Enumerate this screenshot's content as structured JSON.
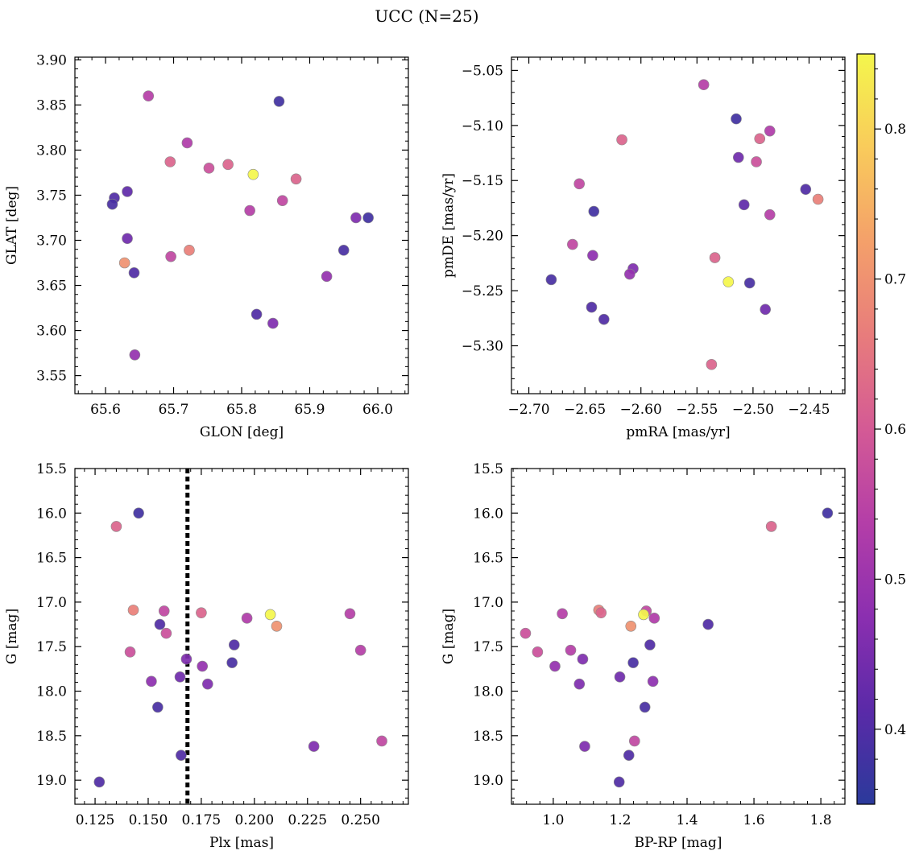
{
  "figure": {
    "title": "UCC (N=25)"
  },
  "colorbar": {
    "range": [
      0.35,
      0.85
    ],
    "ticks": [
      0.4,
      0.5,
      0.6,
      0.7,
      0.8
    ],
    "tick_labels": [
      "0.4",
      "0.5",
      "0.6",
      "0.7",
      "0.8"
    ],
    "colormap": "plasma",
    "stops": [
      "#2b3a9b",
      "#5a2aa8",
      "#8b2fb0",
      "#b43ea8",
      "#d45a95",
      "#e87c7c",
      "#f4a06a",
      "#f9cb5b",
      "#f4f64c"
    ]
  },
  "chart_data": [
    {
      "id": "glon-glat",
      "type": "scatter",
      "xlabel": "GLON [deg]",
      "ylabel": "GLAT [deg]",
      "xlim": [
        65.555,
        66.045
      ],
      "ylim": [
        3.53,
        3.903
      ],
      "y_inverted": false,
      "xticks": [
        65.6,
        65.7,
        65.8,
        65.9,
        66.0
      ],
      "xtick_labels": [
        "65.6",
        "65.7",
        "65.8",
        "65.9",
        "66.0"
      ],
      "yticks": [
        3.55,
        3.6,
        3.65,
        3.7,
        3.75,
        3.8,
        3.85,
        3.9
      ],
      "ytick_labels": [
        "3.55",
        "3.60",
        "3.65",
        "3.70",
        "3.75",
        "3.80",
        "3.85",
        "3.90"
      ],
      "points": [
        {
          "x": 65.663,
          "y": 3.86,
          "c": 0.54
        },
        {
          "x": 65.855,
          "y": 3.854,
          "c": 0.38
        },
        {
          "x": 65.72,
          "y": 3.808,
          "c": 0.53
        },
        {
          "x": 65.695,
          "y": 3.787,
          "c": 0.62
        },
        {
          "x": 65.752,
          "y": 3.78,
          "c": 0.58
        },
        {
          "x": 65.78,
          "y": 3.784,
          "c": 0.62
        },
        {
          "x": 65.817,
          "y": 3.773,
          "c": 0.85
        },
        {
          "x": 65.88,
          "y": 3.768,
          "c": 0.62
        },
        {
          "x": 65.613,
          "y": 3.747,
          "c": 0.4
        },
        {
          "x": 65.61,
          "y": 3.74,
          "c": 0.39
        },
        {
          "x": 65.632,
          "y": 3.754,
          "c": 0.42
        },
        {
          "x": 65.86,
          "y": 3.744,
          "c": 0.56
        },
        {
          "x": 65.812,
          "y": 3.733,
          "c": 0.54
        },
        {
          "x": 65.968,
          "y": 3.725,
          "c": 0.46
        },
        {
          "x": 65.986,
          "y": 3.725,
          "c": 0.38
        },
        {
          "x": 65.632,
          "y": 3.702,
          "c": 0.44
        },
        {
          "x": 65.723,
          "y": 3.689,
          "c": 0.67
        },
        {
          "x": 65.696,
          "y": 3.682,
          "c": 0.56
        },
        {
          "x": 65.95,
          "y": 3.689,
          "c": 0.39
        },
        {
          "x": 65.628,
          "y": 3.675,
          "c": 0.7
        },
        {
          "x": 65.642,
          "y": 3.664,
          "c": 0.4
        },
        {
          "x": 65.925,
          "y": 3.66,
          "c": 0.49
        },
        {
          "x": 65.822,
          "y": 3.618,
          "c": 0.4
        },
        {
          "x": 65.846,
          "y": 3.608,
          "c": 0.46
        },
        {
          "x": 65.643,
          "y": 3.573,
          "c": 0.49
        }
      ]
    },
    {
      "id": "pm",
      "type": "scatter",
      "xlabel": "pmRA [mas/yr]",
      "ylabel": "pmDE [mas/yr]",
      "xlim": [
        -2.7155,
        -2.418
      ],
      "ylim": [
        -5.3435,
        -5.038
      ],
      "y_inverted": false,
      "xticks": [
        -2.7,
        -2.65,
        -2.6,
        -2.55,
        -2.5,
        -2.45
      ],
      "xtick_labels": [
        "−2.70",
        "−2.65",
        "−2.60",
        "−2.55",
        "−2.50",
        "−2.45"
      ],
      "yticks": [
        -5.3,
        -5.25,
        -5.2,
        -5.15,
        -5.1,
        -5.05
      ],
      "ytick_labels": [
        "−5.30",
        "−5.25",
        "−5.20",
        "−5.15",
        "−5.10",
        "−5.05"
      ],
      "points": [
        {
          "x": -2.544,
          "y": -5.063,
          "c": 0.54
        },
        {
          "x": -2.515,
          "y": -5.094,
          "c": 0.38
        },
        {
          "x": -2.485,
          "y": -5.105,
          "c": 0.53
        },
        {
          "x": -2.617,
          "y": -5.113,
          "c": 0.62
        },
        {
          "x": -2.497,
          "y": -5.133,
          "c": 0.58
        },
        {
          "x": -2.494,
          "y": -5.112,
          "c": 0.62
        },
        {
          "x": -2.522,
          "y": -5.242,
          "c": 0.85
        },
        {
          "x": -2.534,
          "y": -5.22,
          "c": 0.62
        },
        {
          "x": -2.453,
          "y": -5.158,
          "c": 0.4
        },
        {
          "x": -2.68,
          "y": -5.24,
          "c": 0.39
        },
        {
          "x": -2.508,
          "y": -5.172,
          "c": 0.42
        },
        {
          "x": -2.655,
          "y": -5.153,
          "c": 0.56
        },
        {
          "x": -2.485,
          "y": -5.181,
          "c": 0.54
        },
        {
          "x": -2.607,
          "y": -5.23,
          "c": 0.46
        },
        {
          "x": -2.642,
          "y": -5.178,
          "c": 0.38
        },
        {
          "x": -2.513,
          "y": -5.129,
          "c": 0.44
        },
        {
          "x": -2.442,
          "y": -5.167,
          "c": 0.67
        },
        {
          "x": -2.661,
          "y": -5.208,
          "c": 0.56
        },
        {
          "x": -2.503,
          "y": -5.243,
          "c": 0.39
        },
        {
          "x": -2.537,
          "y": -5.317,
          "c": 0.62
        },
        {
          "x": -2.643,
          "y": -5.218,
          "c": 0.48
        },
        {
          "x": -2.61,
          "y": -5.235,
          "c": 0.49
        },
        {
          "x": -2.644,
          "y": -5.265,
          "c": 0.4
        },
        {
          "x": -2.633,
          "y": -5.276,
          "c": 0.4
        },
        {
          "x": -2.489,
          "y": -5.267,
          "c": 0.44
        }
      ]
    },
    {
      "id": "plx-g",
      "type": "scatter",
      "xlabel": "Plx [mas]",
      "ylabel": "G [mag]",
      "xlim": [
        0.1155,
        0.2725
      ],
      "ylim": [
        15.5,
        19.27
      ],
      "y_inverted": true,
      "vline": {
        "x": 0.1685,
        "style": "dotted"
      },
      "xticks": [
        0.125,
        0.15,
        0.175,
        0.2,
        0.225,
        0.25
      ],
      "xtick_labels": [
        "0.125",
        "0.150",
        "0.175",
        "0.200",
        "0.225",
        "0.250"
      ],
      "yticks": [
        15.5,
        16.0,
        16.5,
        17.0,
        17.5,
        18.0,
        18.5,
        19.0
      ],
      "ytick_labels": [
        "15.5",
        "16.0",
        "16.5",
        "17.0",
        "17.5",
        "18.0",
        "18.5",
        "19.0"
      ],
      "points": [
        {
          "x": 0.1455,
          "y": 16.0,
          "c": 0.38
        },
        {
          "x": 0.135,
          "y": 16.15,
          "c": 0.62
        },
        {
          "x": 0.143,
          "y": 17.09,
          "c": 0.67
        },
        {
          "x": 0.1575,
          "y": 17.1,
          "c": 0.56
        },
        {
          "x": 0.175,
          "y": 17.12,
          "c": 0.62
        },
        {
          "x": 0.2075,
          "y": 17.14,
          "c": 0.85
        },
        {
          "x": 0.1965,
          "y": 17.18,
          "c": 0.53
        },
        {
          "x": 0.245,
          "y": 17.13,
          "c": 0.54
        },
        {
          "x": 0.2105,
          "y": 17.27,
          "c": 0.7
        },
        {
          "x": 0.1555,
          "y": 17.25,
          "c": 0.4
        },
        {
          "x": 0.1585,
          "y": 17.35,
          "c": 0.58
        },
        {
          "x": 0.1905,
          "y": 17.48,
          "c": 0.4
        },
        {
          "x": 0.1415,
          "y": 17.56,
          "c": 0.58
        },
        {
          "x": 0.25,
          "y": 17.54,
          "c": 0.54
        },
        {
          "x": 0.168,
          "y": 17.64,
          "c": 0.46
        },
        {
          "x": 0.1895,
          "y": 17.68,
          "c": 0.39
        },
        {
          "x": 0.1755,
          "y": 17.72,
          "c": 0.49
        },
        {
          "x": 0.165,
          "y": 17.84,
          "c": 0.44
        },
        {
          "x": 0.1515,
          "y": 17.89,
          "c": 0.48
        },
        {
          "x": 0.178,
          "y": 17.92,
          "c": 0.46
        },
        {
          "x": 0.1545,
          "y": 18.18,
          "c": 0.39
        },
        {
          "x": 0.26,
          "y": 18.56,
          "c": 0.56
        },
        {
          "x": 0.228,
          "y": 18.62,
          "c": 0.46
        },
        {
          "x": 0.1655,
          "y": 18.72,
          "c": 0.4
        },
        {
          "x": 0.127,
          "y": 19.02,
          "c": 0.4
        }
      ]
    },
    {
      "id": "cmd",
      "type": "scatter",
      "xlabel": "BP-RP [mag]",
      "ylabel": "G [mag]",
      "xlim": [
        0.875,
        1.872
      ],
      "ylim": [
        15.5,
        19.27
      ],
      "y_inverted": true,
      "xticks": [
        1.0,
        1.2,
        1.4,
        1.6,
        1.8
      ],
      "xtick_labels": [
        "1.0",
        "1.2",
        "1.4",
        "1.6",
        "1.8"
      ],
      "yticks": [
        15.5,
        16.0,
        16.5,
        17.0,
        17.5,
        18.0,
        18.5,
        19.0
      ],
      "ytick_labels": [
        "15.5",
        "16.0",
        "16.5",
        "17.0",
        "17.5",
        "18.0",
        "18.5",
        "19.0"
      ],
      "points": [
        {
          "x": 1.82,
          "y": 16.0,
          "c": 0.38
        },
        {
          "x": 1.652,
          "y": 16.15,
          "c": 0.62
        },
        {
          "x": 1.136,
          "y": 17.09,
          "c": 0.67
        },
        {
          "x": 1.278,
          "y": 17.1,
          "c": 0.56
        },
        {
          "x": 1.143,
          "y": 17.12,
          "c": 0.62
        },
        {
          "x": 1.27,
          "y": 17.14,
          "c": 0.85
        },
        {
          "x": 1.302,
          "y": 17.18,
          "c": 0.53
        },
        {
          "x": 1.027,
          "y": 17.13,
          "c": 0.54
        },
        {
          "x": 1.232,
          "y": 17.27,
          "c": 0.7
        },
        {
          "x": 1.463,
          "y": 17.25,
          "c": 0.4
        },
        {
          "x": 0.917,
          "y": 17.35,
          "c": 0.58
        },
        {
          "x": 1.289,
          "y": 17.48,
          "c": 0.4
        },
        {
          "x": 0.953,
          "y": 17.56,
          "c": 0.58
        },
        {
          "x": 1.052,
          "y": 17.54,
          "c": 0.54
        },
        {
          "x": 1.088,
          "y": 17.64,
          "c": 0.46
        },
        {
          "x": 1.239,
          "y": 17.68,
          "c": 0.39
        },
        {
          "x": 1.005,
          "y": 17.72,
          "c": 0.49
        },
        {
          "x": 1.199,
          "y": 17.84,
          "c": 0.44
        },
        {
          "x": 1.298,
          "y": 17.89,
          "c": 0.48
        },
        {
          "x": 1.078,
          "y": 17.92,
          "c": 0.46
        },
        {
          "x": 1.274,
          "y": 18.18,
          "c": 0.39
        },
        {
          "x": 1.243,
          "y": 18.56,
          "c": 0.56
        },
        {
          "x": 1.094,
          "y": 18.62,
          "c": 0.46
        },
        {
          "x": 1.226,
          "y": 18.72,
          "c": 0.4
        },
        {
          "x": 1.197,
          "y": 19.02,
          "c": 0.4
        }
      ]
    }
  ]
}
